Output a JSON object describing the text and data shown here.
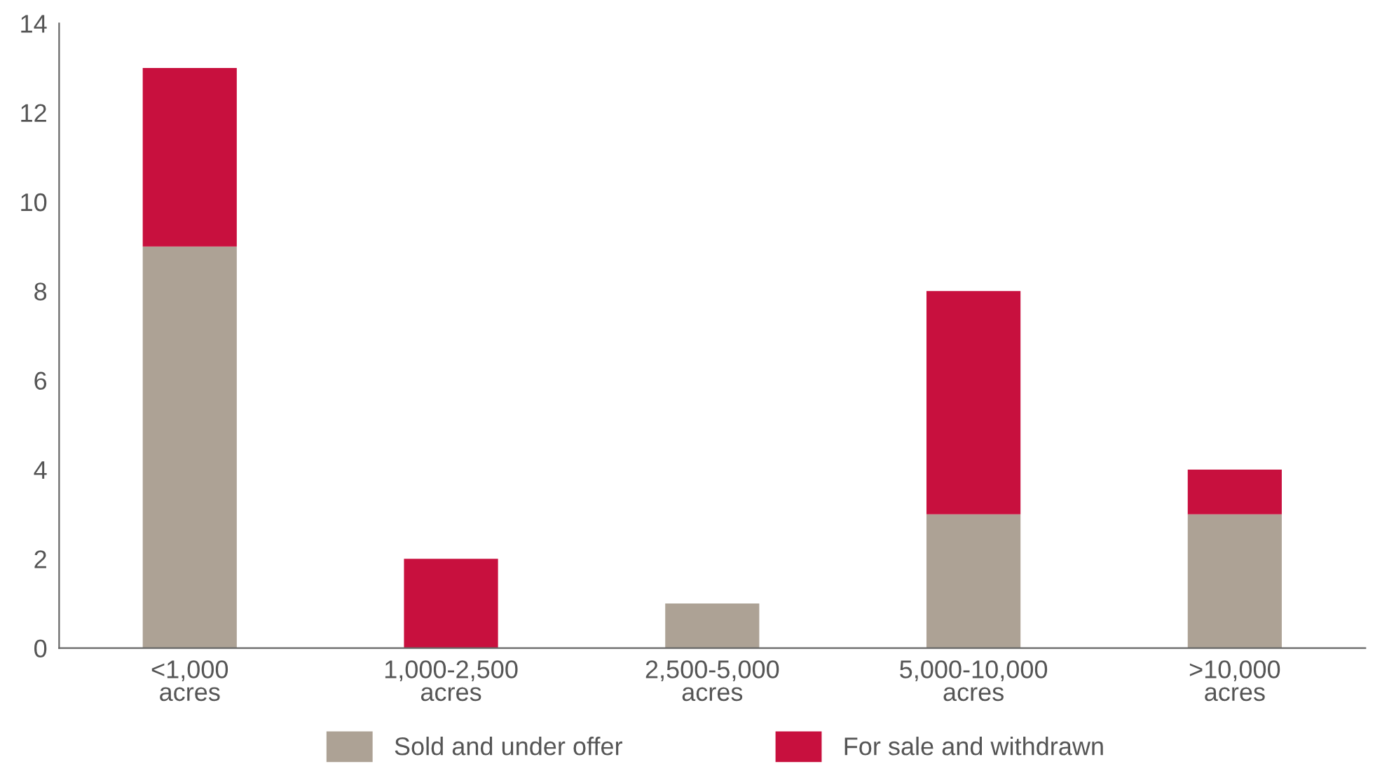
{
  "chart_data": {
    "type": "bar",
    "stacked": true,
    "categories": [
      "<1,000\nacres",
      "1,000-2,500\nacres",
      "2,500-5,000\nacres",
      "5,000-10,000\nacres",
      ">10,000\nacres"
    ],
    "series": [
      {
        "name": "Sold and under offer",
        "color": "#ada295",
        "values": [
          9,
          0,
          1,
          3,
          3
        ]
      },
      {
        "name": "For sale and withdrawn",
        "color": "#c8103e",
        "values": [
          4,
          2,
          0,
          5,
          1
        ]
      }
    ],
    "ylim": [
      0,
      14
    ],
    "yticks": [
      0,
      2,
      4,
      6,
      8,
      10,
      12,
      14
    ],
    "grid": false,
    "legend": "bottom"
  }
}
